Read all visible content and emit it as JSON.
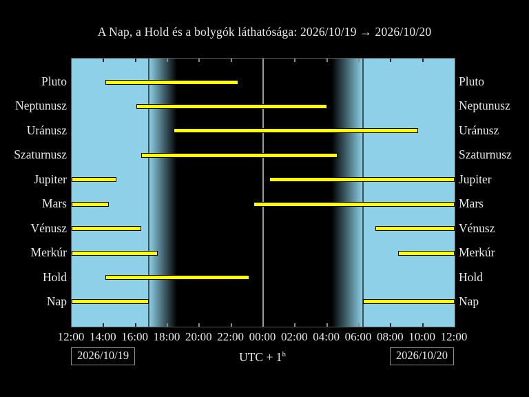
{
  "title": "A Nap, a Hold és a bolygók láthatósága: 2026/10/19 → 2026/10/20",
  "footer": {
    "date_left": "2026/10/19",
    "date_right": "2026/10/20",
    "timezone_label": "UTC + 1",
    "timezone_sup": "h"
  },
  "chart_data": {
    "type": "bar",
    "subtype": "horizontal-visibility-intervals",
    "title": "A Nap, a Hold és a bolygók láthatósága: 2026/10/19 → 2026/10/20",
    "categories": [
      "Pluto",
      "Neptunusz",
      "Uránusz",
      "Szaturnusz",
      "Jupiter",
      "Mars",
      "Vénusz",
      "Merkúr",
      "Hold",
      "Nap"
    ],
    "x_axis": {
      "start": "12:00",
      "end": "12:00",
      "tick_step_hours": 2,
      "tick_labels": [
        "12:00",
        "14:00",
        "16:00",
        "18:00",
        "20:00",
        "22:00",
        "00:00",
        "02:00",
        "04:00",
        "06:00",
        "08:00",
        "10:00",
        "12:00"
      ],
      "range_hours": [
        0,
        24
      ]
    },
    "series": [
      {
        "name": "Pluto",
        "segments": [
          {
            "start_h": 2.1,
            "end_h": 10.45,
            "start": "14:06",
            "end": "22:27"
          }
        ]
      },
      {
        "name": "Neptunusz",
        "segments": [
          {
            "start_h": 4.05,
            "end_h": 16.0,
            "start": "16:03",
            "end": "04:00"
          }
        ]
      },
      {
        "name": "Uránusz",
        "segments": [
          {
            "start_h": 6.4,
            "end_h": 21.7,
            "start": "18:24",
            "end": "09:42"
          }
        ]
      },
      {
        "name": "Szaturnusz",
        "segments": [
          {
            "start_h": 4.35,
            "end_h": 16.65,
            "start": "16:21",
            "end": "04:39"
          }
        ]
      },
      {
        "name": "Jupiter",
        "segments": [
          {
            "start_h": 0,
            "end_h": 2.8,
            "start": "12:00",
            "end": "14:48"
          },
          {
            "start_h": 12.4,
            "end_h": 24,
            "start": "00:24",
            "end": "12:00"
          }
        ]
      },
      {
        "name": "Mars",
        "segments": [
          {
            "start_h": 0,
            "end_h": 2.35,
            "start": "12:00",
            "end": "14:21"
          },
          {
            "start_h": 11.4,
            "end_h": 24,
            "start": "23:24",
            "end": "12:00"
          }
        ]
      },
      {
        "name": "Vénusz",
        "segments": [
          {
            "start_h": 0,
            "end_h": 4.35,
            "start": "12:00",
            "end": "16:21"
          },
          {
            "start_h": 19.05,
            "end_h": 24,
            "start": "07:03",
            "end": "12:00"
          }
        ]
      },
      {
        "name": "Merkúr",
        "segments": [
          {
            "start_h": 0,
            "end_h": 5.4,
            "start": "12:00",
            "end": "17:24"
          },
          {
            "start_h": 20.45,
            "end_h": 24,
            "start": "08:27",
            "end": "12:00"
          }
        ]
      },
      {
        "name": "Hold",
        "segments": [
          {
            "start_h": 2.1,
            "end_h": 11.15,
            "start": "14:06",
            "end": "23:09"
          }
        ]
      },
      {
        "name": "Nap",
        "segments": [
          {
            "start_h": 0,
            "end_h": 4.85,
            "start": "12:00",
            "end": "16:51"
          },
          {
            "start_h": 18.25,
            "end_h": 24,
            "start": "06:15",
            "end": "12:00"
          }
        ]
      }
    ],
    "day_night": {
      "sunset_h": 4.85,
      "dusk_end_h": 6.6,
      "dawn_start_h": 16.3,
      "sunrise_h": 18.25,
      "midnight_line_h": 12,
      "sunset_time": "16:51",
      "sunrise_time": "06:15"
    },
    "legend": "none",
    "grid": "off",
    "colors": {
      "bar_fill": "#ffff00",
      "bar_border": "#000000",
      "day_sky": "#8dd0e8",
      "night_sky": "#000000",
      "twilight_boundary_line": "#3e4e56",
      "midnight_line": "#9a9a9a",
      "text": "#e9e9e9"
    }
  }
}
